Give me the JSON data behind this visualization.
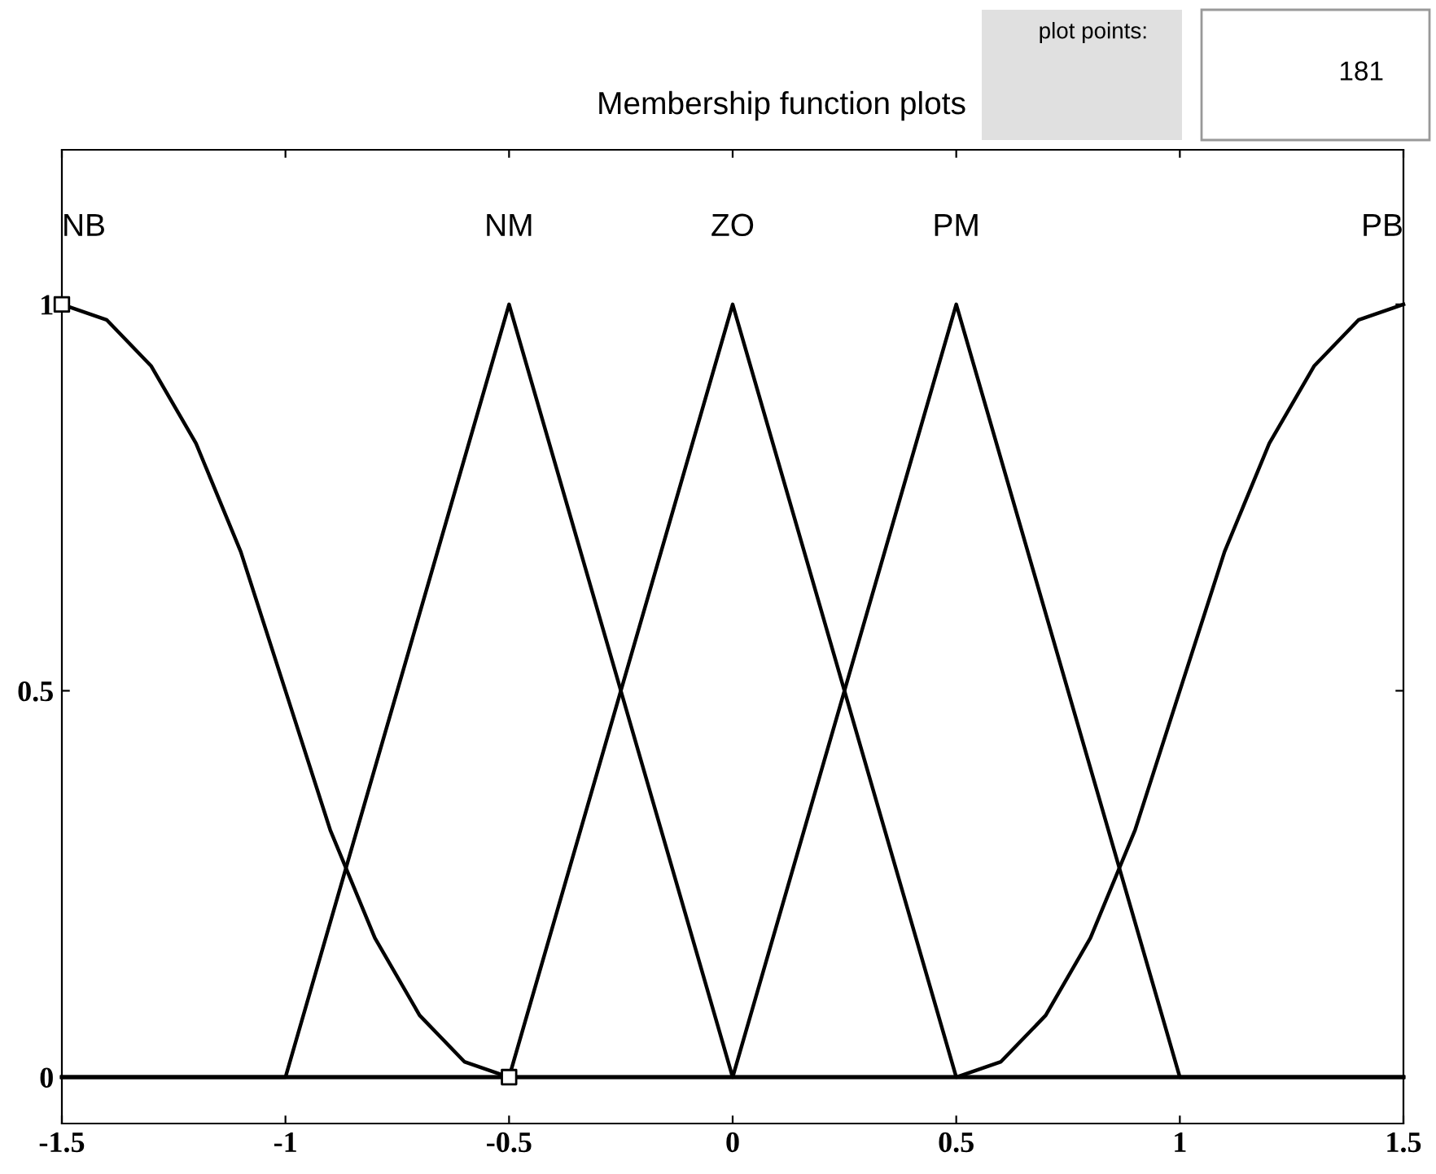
{
  "chart_data": {
    "type": "line",
    "title": "Membership function plots",
    "xlim": [
      -1.5,
      1.5
    ],
    "ylim": [
      -0.06,
      1.2
    ],
    "xticks": [
      -1.5,
      -1,
      -0.5,
      0,
      0.5,
      1,
      1.5
    ],
    "yticks": [
      0,
      0.5,
      1
    ],
    "grid": false,
    "legend": false,
    "marker": "none",
    "line_style": "solid",
    "series": [
      {
        "name": "NB",
        "color": "#000000",
        "x": [
          -1.5,
          -1.4,
          -1.3,
          -1.2,
          -1.1,
          -1.0,
          -0.9,
          -0.8,
          -0.7,
          -0.6,
          -0.5,
          1.5
        ],
        "values": [
          1,
          0.98,
          0.92,
          0.82,
          0.68,
          0.5,
          0.32,
          0.18,
          0.08,
          0.02,
          0,
          0
        ]
      },
      {
        "name": "NM",
        "color": "#000000",
        "x": [
          -1.5,
          -1,
          -0.5,
          0,
          1.5
        ],
        "values": [
          0,
          0,
          1,
          0,
          0
        ]
      },
      {
        "name": "ZO",
        "color": "#000000",
        "x": [
          -1.5,
          -0.5,
          0,
          0.5,
          1.5
        ],
        "values": [
          0,
          0,
          1,
          0,
          0
        ]
      },
      {
        "name": "PM",
        "color": "#000000",
        "x": [
          -1.5,
          0,
          0.5,
          1,
          1.5
        ],
        "values": [
          0,
          0,
          1,
          0,
          0
        ]
      },
      {
        "name": "PB",
        "color": "#000000",
        "x": [
          -1.5,
          0.5,
          0.6,
          0.7,
          0.8,
          0.9,
          1.0,
          1.1,
          1.2,
          1.3,
          1.4,
          1.5
        ],
        "values": [
          0,
          0,
          0.02,
          0.08,
          0.18,
          0.32,
          0.5,
          0.68,
          0.82,
          0.92,
          0.98,
          1
        ]
      },
      {
        "type": "scatter",
        "marker": "square",
        "color": "#000000",
        "x": [
          -1.5,
          -0.5
        ],
        "values": [
          1,
          0
        ]
      }
    ],
    "annotations": [
      "plot points:",
      "181"
    ]
  }
}
